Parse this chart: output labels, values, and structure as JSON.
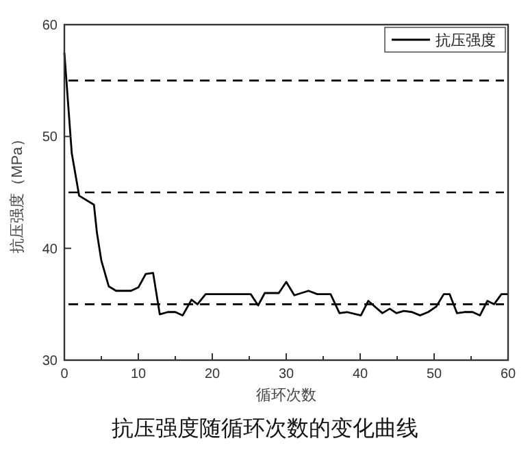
{
  "chart_data": {
    "type": "line",
    "title": "抗压强度随循环次数的变化曲线",
    "xlabel": "循环次数",
    "ylabel": "抗压强度（MPa）",
    "series": [
      {
        "name": "抗压强度",
        "color": "#000000",
        "x": [
          0,
          1,
          2,
          4,
          4.4,
          5,
          6,
          7,
          9,
          10,
          11,
          12,
          12.9,
          14,
          15,
          16,
          17.2,
          18,
          19.1,
          23.2,
          24.3,
          25.2,
          26.2,
          27.1,
          29,
          30,
          31.1,
          33,
          34.2,
          36,
          37.2,
          38.2,
          40.1,
          41.1,
          43,
          44,
          44.9,
          45.9,
          47,
          48.1,
          49.2,
          50.3,
          51.3,
          52.1,
          53.1,
          54.1,
          55.2,
          56.2,
          57.2,
          58.1,
          59.1,
          60
        ],
        "values": [
          57.5,
          48.5,
          44.7,
          43.9,
          41.4,
          38.9,
          36.6,
          36.2,
          36.2,
          36.5,
          37.7,
          37.8,
          34.1,
          34.3,
          34.3,
          34.0,
          35.4,
          35.0,
          35.9,
          35.9,
          35.9,
          35.9,
          34.9,
          36.0,
          36.0,
          37.0,
          35.8,
          36.2,
          35.9,
          35.9,
          34.2,
          34.3,
          34.0,
          35.3,
          34.2,
          34.6,
          34.2,
          34.4,
          34.3,
          34.0,
          34.3,
          34.8,
          35.9,
          35.9,
          34.2,
          34.3,
          34.3,
          34.0,
          35.3,
          35.0,
          35.9,
          35.9
        ]
      }
    ],
    "xlim": [
      0,
      60
    ],
    "ylim": [
      30,
      60
    ],
    "xticks": [
      0,
      {
        "value": 5,
        "label": null
      },
      10,
      {
        "value": 15,
        "label": null
      },
      20,
      {
        "value": 25,
        "label": null
      },
      30,
      {
        "value": 35,
        "label": null
      },
      40,
      {
        "value": 45,
        "label": null
      },
      50,
      {
        "value": 55,
        "label": null
      },
      60
    ],
    "yticks": [
      30,
      40,
      50,
      60
    ],
    "ref_lines": [
      {
        "axis": "y",
        "value": 55,
        "line_style": "dashed",
        "color": "#000000"
      },
      {
        "axis": "y",
        "value": 45,
        "line_style": "dashed",
        "color": "#000000"
      },
      {
        "axis": "y",
        "value": 35,
        "line_style": "dashed",
        "color": "#000000"
      }
    ],
    "grid": false,
    "legend": "top right",
    "marker": "none",
    "line_style": "solid"
  }
}
